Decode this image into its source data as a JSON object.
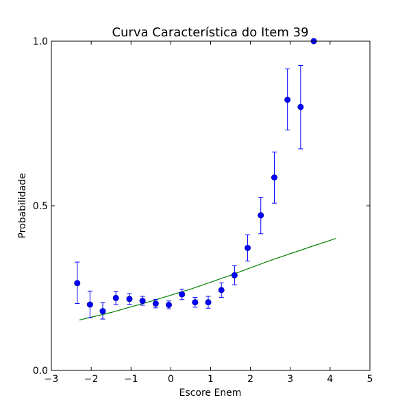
{
  "chart_data": {
    "type": "scatter",
    "title": "Curva Característica do Item 39",
    "xlabel": "Escore Enem",
    "ylabel": "Probabilidade",
    "xlim": [
      -3,
      5
    ],
    "ylim": [
      0.0,
      1.0
    ],
    "xticks": [
      -3,
      -2,
      -1,
      0,
      1,
      2,
      3,
      4,
      5
    ],
    "xtick_labels": [
      "−3",
      "−2",
      "−1",
      "0",
      "1",
      "2",
      "3",
      "4",
      "5"
    ],
    "yticks": [
      0.0,
      0.5,
      1.0
    ],
    "ytick_labels": [
      "0.0",
      "0.5",
      "1.0"
    ],
    "grid": false,
    "series": [
      {
        "kind": "points_with_error_bars",
        "color": "#0000ff",
        "points": [
          {
            "x": -2.35,
            "y": 0.265,
            "ylow": 0.203,
            "yhigh": 0.329
          },
          {
            "x": -2.03,
            "y": 0.2,
            "ylow": 0.16,
            "yhigh": 0.241
          },
          {
            "x": -1.71,
            "y": 0.18,
            "ylow": 0.156,
            "yhigh": 0.206
          },
          {
            "x": -1.38,
            "y": 0.22,
            "ylow": 0.2,
            "yhigh": 0.24
          },
          {
            "x": -1.04,
            "y": 0.217,
            "ylow": 0.201,
            "yhigh": 0.233
          },
          {
            "x": -0.71,
            "y": 0.211,
            "ylow": 0.198,
            "yhigh": 0.225
          },
          {
            "x": -0.38,
            "y": 0.203,
            "ylow": 0.19,
            "yhigh": 0.216
          },
          {
            "x": -0.05,
            "y": 0.199,
            "ylow": 0.187,
            "yhigh": 0.211
          },
          {
            "x": 0.28,
            "y": 0.231,
            "ylow": 0.215,
            "yhigh": 0.247
          },
          {
            "x": 0.61,
            "y": 0.207,
            "ylow": 0.192,
            "yhigh": 0.222
          },
          {
            "x": 0.94,
            "y": 0.207,
            "ylow": 0.189,
            "yhigh": 0.225
          },
          {
            "x": 1.27,
            "y": 0.244,
            "ylow": 0.222,
            "yhigh": 0.266
          },
          {
            "x": 1.6,
            "y": 0.289,
            "ylow": 0.26,
            "yhigh": 0.318
          },
          {
            "x": 1.93,
            "y": 0.372,
            "ylow": 0.332,
            "yhigh": 0.412
          },
          {
            "x": 2.26,
            "y": 0.471,
            "ylow": 0.415,
            "yhigh": 0.526
          },
          {
            "x": 2.6,
            "y": 0.586,
            "ylow": 0.508,
            "yhigh": 0.663
          },
          {
            "x": 2.93,
            "y": 0.822,
            "ylow": 0.73,
            "yhigh": 0.916
          },
          {
            "x": 3.26,
            "y": 0.8,
            "ylow": 0.673,
            "yhigh": 0.926
          },
          {
            "x": 3.59,
            "y": 1.0,
            "ylow": 1.0,
            "yhigh": 1.0
          }
        ]
      },
      {
        "kind": "line",
        "color": "#008000",
        "x": [
          -2.3,
          -1.5,
          -0.5,
          0.5,
          1.5,
          2.5,
          3.5,
          4.15
        ],
        "y": [
          0.153,
          0.176,
          0.21,
          0.247,
          0.289,
          0.334,
          0.375,
          0.401
        ]
      }
    ]
  }
}
